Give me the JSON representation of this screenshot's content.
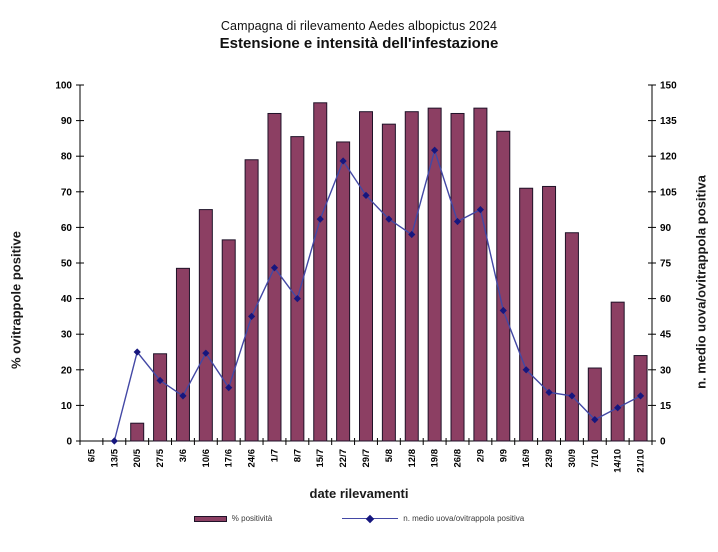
{
  "title": "Campagna di rilevamento Aedes albopictus 2024",
  "subtitle": "Estensione e intensità dell'infestazione",
  "axes": {
    "left_title": "% ovitrappole positive",
    "right_title": "n. medio uova/ovitrappola positiva",
    "x_title": "date rilevamenti",
    "left_ticks": [
      0,
      10,
      20,
      30,
      40,
      50,
      60,
      70,
      80,
      90,
      100
    ],
    "right_ticks": [
      0,
      15,
      30,
      45,
      60,
      75,
      90,
      105,
      120,
      135,
      150
    ]
  },
  "legend": [
    {
      "label": "% positività",
      "swatch": "bar-swatch"
    },
    {
      "label": "n. medio uova/ovitrappola positiva",
      "swatch": "line-swatch"
    }
  ],
  "colors": {
    "bar_fill": "#8C3F63",
    "bar_border": "#1F1228",
    "line": "#4348A5",
    "marker": "#16167E",
    "axis": "#000000",
    "tick_text": "#000000",
    "legend_text": "#3a3a3a"
  },
  "chart_data": {
    "type": "bar+line combo, dual axis",
    "title": "Campagna di rilevamento Aedes albopictus 2024",
    "subtitle": "Estensione e intensità dell'infestazione",
    "xlabel": "date rilevamenti",
    "categories": [
      "6/5",
      "13/5",
      "20/5",
      "27/5",
      "3/6",
      "10/6",
      "17/6",
      "24/6",
      "1/7",
      "8/7",
      "15/7",
      "22/7",
      "29/7",
      "5/8",
      "12/8",
      "19/8",
      "26/8",
      "2/9",
      "9/9",
      "16/9",
      "23/9",
      "30/9",
      "7/10",
      "14/10",
      "21/10"
    ],
    "left_axis": {
      "label": "% ovitrappole positive",
      "ylim": [
        0,
        100
      ],
      "tick_step": 10
    },
    "right_axis": {
      "label": "n. medio uova/ovitrappola positiva",
      "ylim": [
        0,
        150
      ],
      "tick_step": 15
    },
    "grid": false,
    "legend_position": "bottom",
    "series": [
      {
        "name": "% positività",
        "type": "bar",
        "axis": "left",
        "values": [
          0,
          0,
          5,
          24.5,
          48.5,
          65,
          56.5,
          79,
          92,
          85.5,
          95,
          84,
          92.5,
          89,
          92.5,
          93.5,
          92,
          93.5,
          87,
          71,
          71.5,
          58.5,
          20.5,
          39,
          24
        ]
      },
      {
        "name": "n. medio uova/ovitrappola positiva",
        "type": "line",
        "axis": "right",
        "values": [
          null,
          0,
          37.5,
          25.5,
          19,
          37,
          22.5,
          52.5,
          73,
          60,
          93.5,
          118,
          103.5,
          93.5,
          87,
          122.5,
          92.5,
          97.5,
          55,
          30,
          20.5,
          19,
          9,
          14,
          19
        ]
      }
    ]
  }
}
